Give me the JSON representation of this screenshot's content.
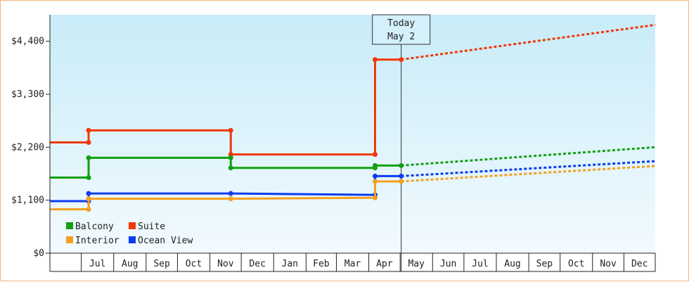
{
  "chart_data": {
    "type": "line",
    "line_shape": "step",
    "today_marker": {
      "line1": "Today",
      "line2": "May 2"
    },
    "y_ticks": [
      {
        "value": 0,
        "label": "$0"
      },
      {
        "value": 1100,
        "label": "$1,100"
      },
      {
        "value": 2200,
        "label": "$2,200"
      },
      {
        "value": 3300,
        "label": "$3,300"
      },
      {
        "value": 4400,
        "label": "$4,400"
      }
    ],
    "ylim": [
      0,
      4950
    ],
    "x_range": [
      "2023-06-01",
      "2024-12-31"
    ],
    "today": "2024-05-02",
    "month_labels": [
      {
        "label": "Jul",
        "date": "2023-07-01"
      },
      {
        "label": "Aug",
        "date": "2023-08-01"
      },
      {
        "label": "Sep",
        "date": "2023-09-01"
      },
      {
        "label": "Oct",
        "date": "2023-10-01"
      },
      {
        "label": "Nov",
        "date": "2023-11-01"
      },
      {
        "label": "Dec",
        "date": "2023-12-01"
      },
      {
        "label": "Jan",
        "date": "2024-01-01"
      },
      {
        "label": "Feb",
        "date": "2024-02-01"
      },
      {
        "label": "Mar",
        "date": "2024-03-01"
      },
      {
        "label": "Apr",
        "date": "2024-04-01"
      },
      {
        "label": "May",
        "date": "2024-05-01"
      },
      {
        "label": "Jun",
        "date": "2024-06-01"
      },
      {
        "label": "Jul",
        "date": "2024-07-01"
      },
      {
        "label": "Aug",
        "date": "2024-08-01"
      },
      {
        "label": "Sep",
        "date": "2024-09-01"
      },
      {
        "label": "Oct",
        "date": "2024-10-01"
      },
      {
        "label": "Nov",
        "date": "2024-11-01"
      },
      {
        "label": "Dec",
        "date": "2024-12-01"
      }
    ],
    "series": [
      {
        "name": "Suite",
        "color": "#f0380a",
        "points": [
          [
            "2023-06-01",
            2300
          ],
          [
            "2023-07-08",
            2300
          ],
          [
            "2023-07-08",
            2550
          ],
          [
            "2023-11-21",
            2550
          ],
          [
            "2023-11-21",
            2050
          ],
          [
            "2024-04-07",
            2050
          ],
          [
            "2024-04-07",
            4020
          ],
          [
            "2024-05-02",
            4020
          ]
        ],
        "forecast": [
          [
            "2024-05-02",
            4020
          ],
          [
            "2024-12-31",
            4740
          ]
        ]
      },
      {
        "name": "Balcony",
        "color": "#12a012",
        "points": [
          [
            "2023-06-01",
            1570
          ],
          [
            "2023-07-08",
            1570
          ],
          [
            "2023-07-08",
            1980
          ],
          [
            "2023-11-21",
            1980
          ],
          [
            "2023-11-21",
            1770
          ],
          [
            "2024-04-07",
            1770
          ],
          [
            "2024-04-07",
            1820
          ],
          [
            "2024-05-02",
            1820
          ]
        ],
        "forecast": [
          [
            "2024-05-02",
            1820
          ],
          [
            "2024-12-31",
            2200
          ]
        ]
      },
      {
        "name": "Ocean View",
        "color": "#0b3cf0",
        "points": [
          [
            "2023-06-01",
            1080
          ],
          [
            "2023-07-08",
            1080
          ],
          [
            "2023-07-08",
            1240
          ],
          [
            "2023-11-21",
            1240
          ],
          [
            "2024-04-07",
            1210
          ],
          [
            "2024-04-07",
            1600
          ],
          [
            "2024-05-02",
            1600
          ]
        ],
        "forecast": [
          [
            "2024-05-02",
            1600
          ],
          [
            "2024-12-31",
            1910
          ]
        ]
      },
      {
        "name": "Interior",
        "color": "#f5a01e",
        "points": [
          [
            "2023-06-01",
            910
          ],
          [
            "2023-07-08",
            910
          ],
          [
            "2023-07-08",
            1130
          ],
          [
            "2023-11-21",
            1130
          ],
          [
            "2024-04-07",
            1150
          ],
          [
            "2024-04-07",
            1490
          ],
          [
            "2024-05-02",
            1490
          ]
        ],
        "forecast": [
          [
            "2024-05-02",
            1490
          ],
          [
            "2024-12-31",
            1810
          ]
        ]
      }
    ],
    "legend": {
      "placement": "bottom-left",
      "items": [
        {
          "name": "Balcony",
          "color": "#12a012"
        },
        {
          "name": "Suite",
          "color": "#f0380a"
        },
        {
          "name": "Interior",
          "color": "#f5a01e"
        },
        {
          "name": "Ocean View",
          "color": "#0b3cf0"
        }
      ]
    },
    "colors": {
      "plot_top": "#c8ecf8",
      "plot_bottom": "#f2fafe",
      "frame_border": "#f0b678"
    }
  }
}
